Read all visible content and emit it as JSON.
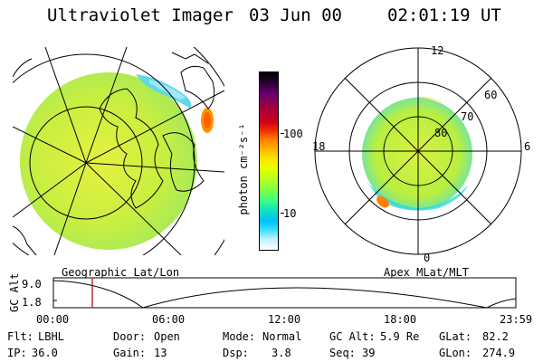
{
  "header": {
    "title": "Ultraviolet Imager",
    "date": "03 Jun 00",
    "time": "02:01:19 UT"
  },
  "colorbar": {
    "unit_label": "photon cm⁻²s⁻¹",
    "ticks": [
      "100",
      "10"
    ],
    "colors_top_to_bottom": [
      "#000000",
      "#2b0033",
      "#6a006f",
      "#a0003c",
      "#d0001a",
      "#f03000",
      "#ff8000",
      "#ffb000",
      "#ffe000",
      "#e8ff00",
      "#b8ff20",
      "#80ff40",
      "#40ff80",
      "#10e0c0",
      "#00c0ff",
      "#40e0ff",
      "#c0f0ff",
      "#ffffff"
    ]
  },
  "left_map": {
    "caption": "Geographic Lat/Lon",
    "fill_color": "#c8ef40"
  },
  "right_map": {
    "caption": "Apex MLat/MLT",
    "mlt_labels": {
      "top": "12",
      "left": "18",
      "right": "6",
      "bottom": "0"
    },
    "mlat_labels": [
      "60",
      "70",
      "80"
    ]
  },
  "altitude_plot": {
    "ylabel": "GC Alt",
    "yticks": [
      "9.0",
      "1.8"
    ],
    "xticks": [
      "00:00",
      "06:00",
      "12:00",
      "18:00",
      "23:59"
    ],
    "marker_color": "#c03030"
  },
  "info": {
    "row1": [
      {
        "label": "Flt:",
        "value": "LBHL"
      },
      {
        "label": "Door:",
        "value": "Open"
      },
      {
        "label": "Mode:",
        "value": "Normal"
      },
      {
        "label": "GC Alt:",
        "value": "5.9 Re"
      },
      {
        "label": "GLat:",
        "value": "82.2"
      }
    ],
    "row2": [
      {
        "label": "IP:",
        "value": "36.0"
      },
      {
        "label": "Gain:",
        "value": "13"
      },
      {
        "label": "Dsp:",
        "value": "3.8"
      },
      {
        "label": "Seq:",
        "value": "39"
      },
      {
        "label": "GLon:",
        "value": "274.9"
      }
    ]
  }
}
